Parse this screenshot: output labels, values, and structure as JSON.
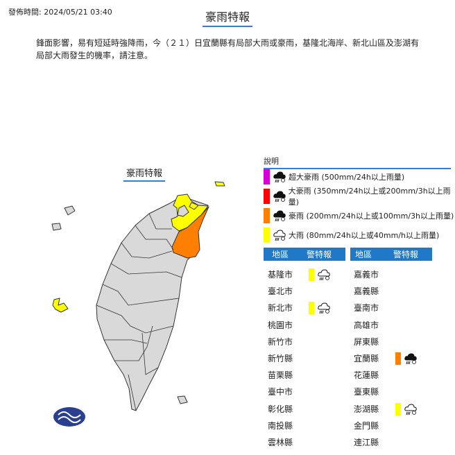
{
  "header": {
    "published": "發佈時間: 2024/05/21 03:40",
    "title": "豪雨特報"
  },
  "description": "鋒面影響，易有短延時強降雨，今（２１）日宜蘭縣有局部大雨或豪雨，基隆北海岸、新北山區及澎湖有局部大雨發生的機率，請注意。",
  "map": {
    "title": "豪雨特報"
  },
  "legend": {
    "title": "說明",
    "items": [
      {
        "color": "#d400d4",
        "icon": "extremely-torrential-rain-icon",
        "label": "超大豪雨 (500mm/24h以上雨量)"
      },
      {
        "color": "#ff0000",
        "icon": "torrential-rain-icon",
        "label": "大豪雨 (350mm/24h以上或200mm/3h以上雨量)"
      },
      {
        "color": "#ff8000",
        "icon": "extremely-heavy-rain-icon",
        "label": "豪雨 (200mm/24h以上或100mm/3h以上雨量)"
      },
      {
        "color": "#ffff00",
        "icon": "heavy-rain-icon",
        "label": "大雨 (80mm/24h以上或40mm/h以上雨量)"
      }
    ]
  },
  "table": {
    "col_region": "地區",
    "col_warning": "警特報",
    "left": [
      {
        "name": "基隆市",
        "level": "大雨",
        "color": "#ffff00"
      },
      {
        "name": "臺北市"
      },
      {
        "name": "新北市",
        "level": "大雨",
        "color": "#ffff00"
      },
      {
        "name": "桃園市"
      },
      {
        "name": "新竹市"
      },
      {
        "name": "新竹縣"
      },
      {
        "name": "苗栗縣"
      },
      {
        "name": "臺中市"
      },
      {
        "name": "彰化縣"
      },
      {
        "name": "南投縣"
      },
      {
        "name": "雲林縣"
      }
    ],
    "right": [
      {
        "name": "嘉義市"
      },
      {
        "name": "嘉義縣"
      },
      {
        "name": "臺南市"
      },
      {
        "name": "高雄市"
      },
      {
        "name": "屏東縣"
      },
      {
        "name": "宜蘭縣",
        "level": "豪雨",
        "color": "#ff8000"
      },
      {
        "name": "花蓮縣"
      },
      {
        "name": "臺東縣"
      },
      {
        "name": "澎湖縣",
        "level": "大雨",
        "color": "#ffff00"
      },
      {
        "name": "金門縣"
      },
      {
        "name": "連江縣"
      }
    ]
  }
}
